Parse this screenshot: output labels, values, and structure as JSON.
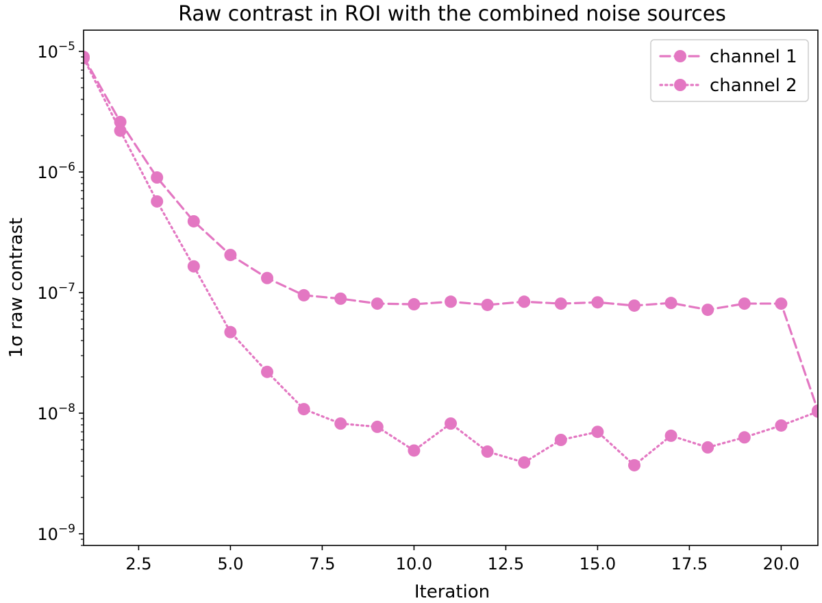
{
  "chart_data": {
    "type": "line",
    "title": "Raw contrast in ROI with the combined noise sources",
    "xlabel": "Iteration",
    "ylabel": "1σ raw contrast",
    "xlim": [
      1,
      21
    ],
    "ylim": [
      8e-10,
      1.5e-05
    ],
    "yscale": "log",
    "xticks": [
      2.5,
      5.0,
      7.5,
      10.0,
      12.5,
      15.0,
      17.5,
      20.0
    ],
    "xtick_labels": [
      "2.5",
      "5.0",
      "7.5",
      "10.0",
      "12.5",
      "15.0",
      "17.5",
      "20.0"
    ],
    "yticks": [
      {
        "value": 1e-05,
        "base": "10",
        "exp": "−5"
      },
      {
        "value": 1e-06,
        "base": "10",
        "exp": "−6"
      },
      {
        "value": 1e-07,
        "base": "10",
        "exp": "−7"
      },
      {
        "value": 1e-08,
        "base": "10",
        "exp": "−8"
      },
      {
        "value": 1e-09,
        "base": "10",
        "exp": "−9"
      }
    ],
    "grid": false,
    "legend_position": "top-right",
    "series": [
      {
        "name": "channel 1",
        "color": "#e377c2",
        "linestyle": "dashed",
        "x": [
          1,
          2,
          3,
          4,
          5,
          6,
          7,
          8,
          9,
          10,
          11,
          12,
          13,
          14,
          15,
          16,
          17,
          18,
          19,
          20,
          21
        ],
        "values": [
          9e-06,
          2.6e-06,
          9e-07,
          3.9e-07,
          2.05e-07,
          1.32e-07,
          9.5e-08,
          8.9e-08,
          8.1e-08,
          8e-08,
          8.4e-08,
          7.9e-08,
          8.4e-08,
          8.1e-08,
          8.3e-08,
          7.8e-08,
          8.2e-08,
          7.2e-08,
          8.1e-08,
          8.1e-08,
          1.05e-08
        ]
      },
      {
        "name": "channel 2",
        "color": "#e377c2",
        "linestyle": "dotted",
        "x": [
          1,
          2,
          3,
          4,
          5,
          6,
          7,
          8,
          9,
          10,
          11,
          12,
          13,
          14,
          15,
          16,
          17,
          18,
          19,
          20,
          21
        ],
        "values": [
          8.8e-06,
          2.2e-06,
          5.7e-07,
          1.65e-07,
          4.7e-08,
          2.2e-08,
          1.08e-08,
          8.2e-09,
          7.7e-09,
          4.9e-09,
          8.2e-09,
          4.8e-09,
          3.9e-09,
          6e-09,
          7e-09,
          3.7e-09,
          6.5e-09,
          5.2e-09,
          6.3e-09,
          7.9e-09,
          1.03e-08
        ]
      }
    ]
  }
}
